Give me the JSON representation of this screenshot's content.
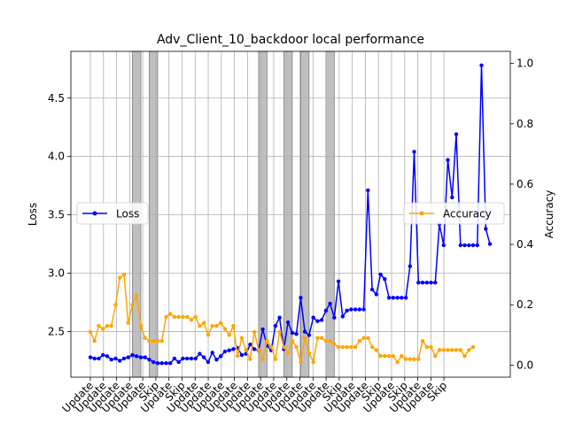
{
  "chart_data": {
    "type": "line",
    "title": "Adv_Client_10_backdoor local performance",
    "ylabel_left": "Loss",
    "ylabel_right": "Accuracy",
    "xlabel": "",
    "grid": true,
    "ylim_left": [
      2.11,
      4.9
    ],
    "ylim_right": [
      -0.04,
      1.04
    ],
    "yticks_left": [
      "2.5",
      "3.0",
      "3.5",
      "4.0",
      "4.5"
    ],
    "yticks_right": [
      "0.0",
      "0.2",
      "0.4",
      "0.6",
      "0.8",
      "1.0"
    ],
    "x_tick_labels": [
      "Update",
      "Update",
      "Update",
      "Update",
      "Update",
      "Skip",
      "Update",
      "Skip",
      "Update",
      "Update",
      "Update",
      "Update",
      "Update",
      "Update",
      "Update",
      "Update",
      "Update",
      "Update",
      "Update",
      "Skip",
      "Update",
      "Update",
      "Skip",
      "Update",
      "Skip",
      "Update",
      "Update",
      "Skip"
    ],
    "skip_rounds": [
      [
        10,
        12
      ],
      [
        14,
        16
      ],
      [
        40,
        42
      ],
      [
        46,
        48
      ],
      [
        50,
        52
      ],
      [
        56,
        58
      ]
    ],
    "series": [
      {
        "name": "Loss",
        "axis": "left",
        "color": "#0000ff",
        "legend_position": "center-left",
        "values": [
          2.28,
          2.27,
          2.27,
          2.3,
          2.29,
          2.26,
          2.27,
          2.25,
          2.27,
          2.28,
          2.3,
          2.29,
          2.28,
          2.28,
          2.26,
          2.24,
          2.23,
          2.23,
          2.23,
          2.23,
          2.27,
          2.24,
          2.27,
          2.27,
          2.27,
          2.27,
          2.31,
          2.28,
          2.24,
          2.32,
          2.26,
          2.29,
          2.33,
          2.34,
          2.35,
          2.36,
          2.3,
          2.31,
          2.39,
          2.35,
          2.34,
          2.52,
          2.38,
          2.34,
          2.55,
          2.62,
          2.35,
          2.58,
          2.49,
          2.48,
          2.79,
          2.5,
          2.47,
          2.62,
          2.59,
          2.6,
          2.68,
          2.74,
          2.62,
          2.93,
          2.63,
          2.68,
          2.69,
          2.69,
          2.69,
          2.69,
          3.71,
          2.86,
          2.82,
          2.99,
          2.95,
          2.79,
          2.79,
          2.79,
          2.79,
          2.79,
          3.06,
          4.04,
          2.92,
          2.92,
          2.92,
          2.92,
          2.92,
          3.42,
          3.24,
          3.97,
          3.65,
          4.19,
          3.24,
          3.24,
          3.24,
          3.24,
          3.24,
          4.78,
          3.38,
          3.25
        ]
      },
      {
        "name": "Accuracy",
        "axis": "right",
        "color": "#ffa500",
        "legend_position": "center-right",
        "values": [
          0.11,
          0.08,
          0.13,
          0.12,
          0.13,
          0.13,
          0.2,
          0.29,
          0.3,
          0.14,
          0.2,
          0.23,
          0.13,
          0.09,
          0.08,
          0.08,
          0.08,
          0.08,
          0.16,
          0.17,
          0.16,
          0.16,
          0.16,
          0.16,
          0.15,
          0.16,
          0.13,
          0.14,
          0.1,
          0.13,
          0.13,
          0.14,
          0.12,
          0.1,
          0.13,
          0.03,
          0.09,
          0.05,
          0.02,
          0.11,
          0.05,
          0.02,
          0.08,
          0.06,
          0.02,
          0.11,
          0.06,
          0.04,
          0.08,
          0.06,
          0.01,
          0.09,
          0.04,
          0.01,
          0.09,
          0.09,
          0.08,
          0.08,
          0.07,
          0.06,
          0.06,
          0.06,
          0.06,
          0.06,
          0.08,
          0.09,
          0.09,
          0.06,
          0.05,
          0.03,
          0.03,
          0.03,
          0.03,
          0.01,
          0.03,
          0.02,
          0.02,
          0.02,
          0.02,
          0.08,
          0.06,
          0.06,
          0.03,
          0.05,
          0.05,
          0.05,
          0.05,
          0.05,
          0.05,
          0.03,
          0.05,
          0.06
        ]
      }
    ]
  }
}
